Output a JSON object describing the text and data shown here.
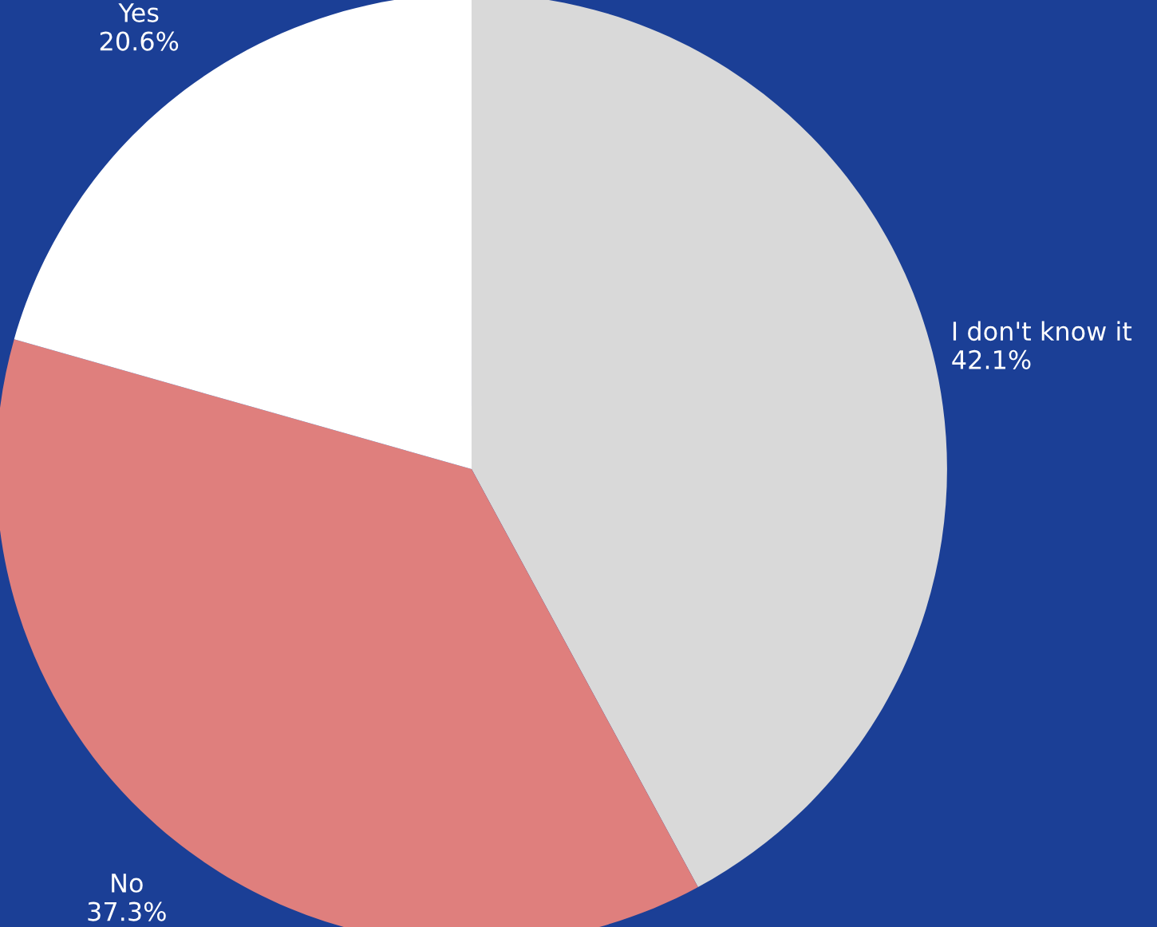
{
  "chart_data": {
    "type": "pie",
    "categories": [
      "I don't know it",
      "No",
      "Yes"
    ],
    "values": [
      42.1,
      37.3,
      20.6
    ],
    "colors": [
      "#d9d9d9",
      "#df7f7d",
      "#ffffff"
    ],
    "value_labels": [
      "42.1%",
      "37.3%",
      "20.6%"
    ]
  }
}
